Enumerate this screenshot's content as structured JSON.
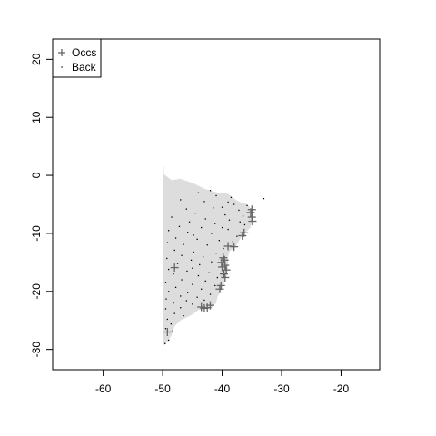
{
  "chart_data": {
    "type": "scatter",
    "title": "",
    "xlabel": "",
    "ylabel": "",
    "xlim": [
      -68.5,
      -13.5
    ],
    "ylim": [
      -33.5,
      23.5
    ],
    "xticks": [
      -60,
      -50,
      -40,
      -30,
      -20
    ],
    "yticks": [
      -30,
      -20,
      -10,
      0,
      10,
      20
    ],
    "grid": false,
    "legend_position": "top-left",
    "legend": [
      {
        "label": "Occs",
        "symbol": "plus",
        "color": "#666666"
      },
      {
        "label": "Back",
        "symbol": "dot",
        "color": "#000000"
      }
    ],
    "background_region": {
      "color": "#dddddd",
      "outline": [
        [
          -50.0,
          1.8
        ],
        [
          -49.8,
          1.5
        ],
        [
          -49.8,
          0.2
        ],
        [
          -48.5,
          -0.8
        ],
        [
          -47.0,
          -0.6
        ],
        [
          -45.0,
          -1.3
        ],
        [
          -43.0,
          -2.3
        ],
        [
          -41.0,
          -2.9
        ],
        [
          -39.0,
          -3.2
        ],
        [
          -38.0,
          -4.0
        ],
        [
          -37.0,
          -4.6
        ],
        [
          -35.8,
          -5.0
        ],
        [
          -35.1,
          -5.8
        ],
        [
          -34.8,
          -7.0
        ],
        [
          -34.9,
          -8.0
        ],
        [
          -35.2,
          -9.0
        ],
        [
          -36.3,
          -10.0
        ],
        [
          -37.0,
          -11.0
        ],
        [
          -37.8,
          -12.5
        ],
        [
          -38.7,
          -13.0
        ],
        [
          -39.0,
          -14.0
        ],
        [
          -39.0,
          -16.0
        ],
        [
          -39.3,
          -17.5
        ],
        [
          -39.8,
          -19.0
        ],
        [
          -40.8,
          -21.0
        ],
        [
          -41.0,
          -22.0
        ],
        [
          -42.0,
          -23.0
        ],
        [
          -44.0,
          -23.2
        ],
        [
          -45.0,
          -24.0
        ],
        [
          -47.0,
          -25.0
        ],
        [
          -48.0,
          -26.0
        ],
        [
          -48.5,
          -27.5
        ],
        [
          -49.0,
          -28.5
        ],
        [
          -49.8,
          -29.3
        ],
        [
          -50.0,
          -29.5
        ]
      ]
    },
    "series": [
      {
        "name": "Occs",
        "symbol": "plus",
        "points": [
          [
            -35.0,
            -5.9
          ],
          [
            -35.2,
            -6.4
          ],
          [
            -35.0,
            -7.2
          ],
          [
            -34.9,
            -7.9
          ],
          [
            -36.3,
            -9.9
          ],
          [
            -36.6,
            -10.4
          ],
          [
            -38.0,
            -12.3
          ],
          [
            -39.0,
            -12.2
          ],
          [
            -39.8,
            -14.2
          ],
          [
            -39.6,
            -14.6
          ],
          [
            -40.1,
            -15.0
          ],
          [
            -39.5,
            -15.5
          ],
          [
            -40.0,
            -15.8
          ],
          [
            -39.3,
            -16.3
          ],
          [
            -39.7,
            -17.0
          ],
          [
            -39.5,
            -17.6
          ],
          [
            -40.2,
            -19.0
          ],
          [
            -40.4,
            -19.6
          ],
          [
            -48.0,
            -15.9
          ],
          [
            -42.0,
            -22.4
          ],
          [
            -42.5,
            -22.8
          ],
          [
            -43.0,
            -22.9
          ],
          [
            -43.5,
            -22.7
          ],
          [
            -49.2,
            -27.0
          ]
        ]
      },
      {
        "name": "Back",
        "symbol": "dot",
        "points": [
          [
            -44.0,
            -3.0
          ],
          [
            -41.0,
            -3.5
          ],
          [
            -38.5,
            -3.8
          ],
          [
            -43.0,
            -4.5
          ],
          [
            -38.0,
            -5.0
          ],
          [
            -35.8,
            -5.2
          ],
          [
            -40.0,
            -5.5
          ],
          [
            -46.0,
            -5.8
          ],
          [
            -41.5,
            -5.6
          ],
          [
            -37.2,
            -6.0
          ],
          [
            -44.5,
            -6.5
          ],
          [
            -39.5,
            -6.8
          ],
          [
            -36.5,
            -7.0
          ],
          [
            -48.5,
            -7.2
          ],
          [
            -42.8,
            -7.5
          ],
          [
            -38.8,
            -7.7
          ],
          [
            -45.5,
            -8.0
          ],
          [
            -41.2,
            -8.3
          ],
          [
            -36.2,
            -8.5
          ],
          [
            -47.2,
            -8.8
          ],
          [
            -43.5,
            -9.0
          ],
          [
            -39.0,
            -9.3
          ],
          [
            -49.0,
            -9.5
          ],
          [
            -45.8,
            -9.8
          ],
          [
            -41.8,
            -10.0
          ],
          [
            -37.5,
            -10.5
          ],
          [
            -47.8,
            -10.8
          ],
          [
            -44.2,
            -11.0
          ],
          [
            -40.5,
            -11.2
          ],
          [
            -38.2,
            -11.4
          ],
          [
            -49.2,
            -11.6
          ],
          [
            -46.5,
            -11.9
          ],
          [
            -42.5,
            -12.0
          ],
          [
            -39.8,
            -12.6
          ],
          [
            -48.0,
            -12.9
          ],
          [
            -44.8,
            -13.2
          ],
          [
            -41.0,
            -13.4
          ],
          [
            -46.8,
            -13.8
          ],
          [
            -43.2,
            -14.0
          ],
          [
            -49.3,
            -14.3
          ],
          [
            -45.2,
            -14.6
          ],
          [
            -41.8,
            -14.9
          ],
          [
            -47.5,
            -15.2
          ],
          [
            -43.8,
            -15.4
          ],
          [
            -49.0,
            -16.2
          ],
          [
            -45.9,
            -16.5
          ],
          [
            -42.2,
            -16.7
          ],
          [
            -48.2,
            -17.0
          ],
          [
            -44.0,
            -17.3
          ],
          [
            -40.8,
            -17.6
          ],
          [
            -46.8,
            -18.0
          ],
          [
            -42.8,
            -18.2
          ],
          [
            -49.5,
            -18.5
          ],
          [
            -45.0,
            -18.8
          ],
          [
            -41.2,
            -19.0
          ],
          [
            -47.8,
            -19.3
          ],
          [
            -43.5,
            -19.6
          ],
          [
            -49.0,
            -20.0
          ],
          [
            -45.8,
            -20.2
          ],
          [
            -42.0,
            -20.5
          ],
          [
            -47.0,
            -20.8
          ],
          [
            -44.2,
            -21.0
          ],
          [
            -49.4,
            -21.3
          ],
          [
            -46.0,
            -21.6
          ],
          [
            -43.0,
            -21.5
          ],
          [
            -48.2,
            -22.0
          ],
          [
            -45.0,
            -22.2
          ],
          [
            -47.0,
            -22.8
          ],
          [
            -49.5,
            -23.0
          ],
          [
            -48.0,
            -23.8
          ],
          [
            -46.5,
            -24.2
          ],
          [
            -49.2,
            -24.8
          ],
          [
            -48.6,
            -25.6
          ],
          [
            -49.5,
            -26.4
          ],
          [
            -49.0,
            -28.4
          ],
          [
            -49.6,
            -29.0
          ],
          [
            -48.3,
            -26.8
          ],
          [
            -44.8,
            -10.3
          ],
          [
            -40.0,
            -9.0
          ],
          [
            -37.0,
            -8.0
          ],
          [
            -39.0,
            -4.6
          ],
          [
            -42.0,
            -2.6
          ],
          [
            -33.0,
            -4.0
          ],
          [
            -47.0,
            -4.2
          ],
          [
            -45.0,
            -16.0
          ]
        ]
      }
    ]
  }
}
